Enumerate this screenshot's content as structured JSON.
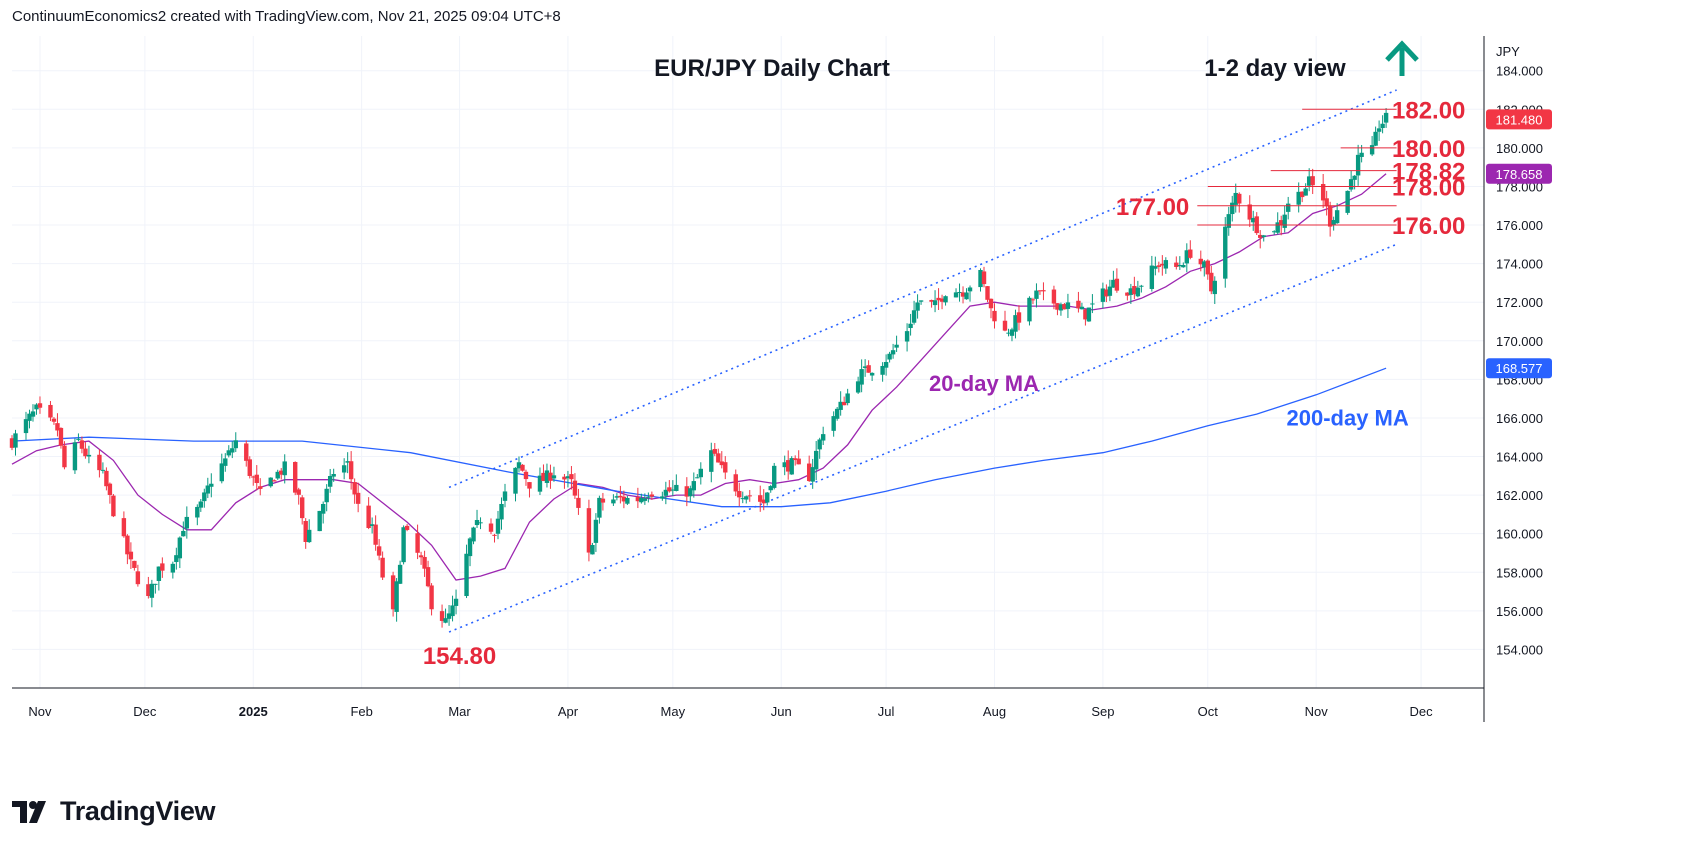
{
  "header": {
    "text": "ContinuumEconomics2 created with TradingView.com, Nov 21, 2025 09:04 UTC+8"
  },
  "brand": {
    "name": "TradingView",
    "icon": "tradingview-logo-icon"
  },
  "colors": {
    "up": "#089981",
    "down": "#f23645",
    "ma20": "#9c27b0",
    "ma200": "#2962ff",
    "level_text": "#e5293c",
    "channel": "#2962ff",
    "arrow": "#089981",
    "tag_last": "#f23645",
    "tag_ma20": "#9c27b0",
    "tag_ma200": "#2962ff"
  },
  "chart_data": {
    "type": "candlestick",
    "title": "EUR/JPY Daily Chart",
    "subtitle": "1-2 day view",
    "bias_icon": "arrow-up-icon",
    "currency": "JPY",
    "ylim": [
      152.0,
      185.8
    ],
    "y_ticks": [
      "154.000",
      "156.000",
      "158.000",
      "160.000",
      "162.000",
      "164.000",
      "166.000",
      "168.000",
      "170.000",
      "172.000",
      "174.000",
      "176.000",
      "178.000",
      "180.000",
      "182.000",
      "184.000"
    ],
    "y_tick_values": [
      154,
      156,
      158,
      160,
      162,
      164,
      166,
      168,
      170,
      172,
      174,
      176,
      178,
      180,
      182,
      184
    ],
    "x_range": [
      "2024-10-24",
      "2025-12-19"
    ],
    "x_ticks": [
      {
        "label": "Nov",
        "date": "2024-11-01",
        "bold": false
      },
      {
        "label": "Dec",
        "date": "2024-12-01",
        "bold": false
      },
      {
        "label": "2025",
        "date": "2025-01-01",
        "bold": true
      },
      {
        "label": "Feb",
        "date": "2025-02-01",
        "bold": false
      },
      {
        "label": "Mar",
        "date": "2025-03-01",
        "bold": false
      },
      {
        "label": "Apr",
        "date": "2025-04-01",
        "bold": false
      },
      {
        "label": "May",
        "date": "2025-05-01",
        "bold": false
      },
      {
        "label": "Jun",
        "date": "2025-06-01",
        "bold": false
      },
      {
        "label": "Jul",
        "date": "2025-07-01",
        "bold": false
      },
      {
        "label": "Aug",
        "date": "2025-08-01",
        "bold": false
      },
      {
        "label": "Sep",
        "date": "2025-09-01",
        "bold": false
      },
      {
        "label": "Oct",
        "date": "2025-10-01",
        "bold": false
      },
      {
        "label": "Nov",
        "date": "2025-11-01",
        "bold": false
      },
      {
        "label": "Dec",
        "date": "2025-12-01",
        "bold": false
      }
    ],
    "price_path": [
      [
        "2024-10-24",
        164.8
      ],
      [
        "2024-10-29",
        166.0
      ],
      [
        "2024-10-31",
        166.4
      ],
      [
        "2024-11-06",
        165.4
      ],
      [
        "2024-11-08",
        163.4
      ],
      [
        "2024-11-12",
        164.8
      ],
      [
        "2024-11-15",
        163.8
      ],
      [
        "2024-11-19",
        163.0
      ],
      [
        "2024-11-22",
        161.2
      ],
      [
        "2024-11-27",
        158.4
      ],
      [
        "2024-12-02",
        156.6
      ],
      [
        "2024-12-05",
        158.2
      ],
      [
        "2024-12-09",
        158.6
      ],
      [
        "2024-12-12",
        160.4
      ],
      [
        "2024-12-17",
        161.4
      ],
      [
        "2024-12-20",
        162.8
      ],
      [
        "2024-12-24",
        163.8
      ],
      [
        "2024-12-27",
        164.8
      ],
      [
        "2024-12-31",
        163.2
      ],
      [
        "2025-01-03",
        162.0
      ],
      [
        "2025-01-07",
        163.0
      ],
      [
        "2025-01-10",
        163.4
      ],
      [
        "2025-01-14",
        161.8
      ],
      [
        "2025-01-16",
        159.8
      ],
      [
        "2025-01-21",
        161.6
      ],
      [
        "2025-01-24",
        163.2
      ],
      [
        "2025-01-28",
        163.6
      ],
      [
        "2025-01-31",
        161.4
      ],
      [
        "2025-02-04",
        160.2
      ],
      [
        "2025-02-07",
        157.8
      ],
      [
        "2025-02-10",
        155.8
      ],
      [
        "2025-02-13",
        160.2
      ],
      [
        "2025-02-18",
        158.6
      ],
      [
        "2025-02-21",
        156.4
      ],
      [
        "2025-02-25",
        155.4
      ],
      [
        "2025-02-28",
        156.4
      ],
      [
        "2025-03-04",
        159.6
      ],
      [
        "2025-03-07",
        160.8
      ],
      [
        "2025-03-11",
        160.2
      ],
      [
        "2025-03-14",
        162.0
      ],
      [
        "2025-03-18",
        163.6
      ],
      [
        "2025-03-21",
        162.6
      ],
      [
        "2025-03-25",
        162.8
      ],
      [
        "2025-03-28",
        163.2
      ],
      [
        "2025-04-02",
        162.6
      ],
      [
        "2025-04-07",
        158.8
      ],
      [
        "2025-04-10",
        161.6
      ],
      [
        "2025-04-15",
        161.8
      ],
      [
        "2025-04-21",
        161.8
      ],
      [
        "2025-04-24",
        162.2
      ],
      [
        "2025-04-30",
        162.2
      ],
      [
        "2025-05-06",
        162.2
      ],
      [
        "2025-05-12",
        164.2
      ],
      [
        "2025-05-16",
        163.0
      ],
      [
        "2025-05-20",
        162.2
      ],
      [
        "2025-05-23",
        162.0
      ],
      [
        "2025-05-27",
        161.6
      ],
      [
        "2025-05-30",
        163.4
      ],
      [
        "2025-06-04",
        163.6
      ],
      [
        "2025-06-09",
        163.0
      ],
      [
        "2025-06-13",
        165.4
      ],
      [
        "2025-06-18",
        166.6
      ],
      [
        "2025-06-23",
        168.2
      ],
      [
        "2025-06-27",
        168.6
      ],
      [
        "2025-07-02",
        169.2
      ],
      [
        "2025-07-07",
        170.6
      ],
      [
        "2025-07-10",
        172.0
      ],
      [
        "2025-07-15",
        171.8
      ],
      [
        "2025-07-18",
        172.6
      ],
      [
        "2025-07-23",
        172.6
      ],
      [
        "2025-07-28",
        173.4
      ],
      [
        "2025-07-31",
        171.6
      ],
      [
        "2025-08-04",
        170.4
      ],
      [
        "2025-08-08",
        171.2
      ],
      [
        "2025-08-13",
        172.4
      ],
      [
        "2025-08-18",
        172.0
      ],
      [
        "2025-08-22",
        171.8
      ],
      [
        "2025-08-27",
        171.4
      ],
      [
        "2025-09-01",
        172.4
      ],
      [
        "2025-09-04",
        173.0
      ],
      [
        "2025-09-09",
        172.6
      ],
      [
        "2025-09-12",
        173.0
      ],
      [
        "2025-09-17",
        174.0
      ],
      [
        "2025-09-22",
        173.8
      ],
      [
        "2025-09-26",
        174.6
      ],
      [
        "2025-09-30",
        173.8
      ],
      [
        "2025-10-02",
        172.6
      ],
      [
        "2025-10-06",
        175.8
      ],
      [
        "2025-10-09",
        177.6
      ],
      [
        "2025-10-14",
        176.2
      ],
      [
        "2025-10-17",
        175.4
      ],
      [
        "2025-10-22",
        176.2
      ],
      [
        "2025-10-24",
        177.2
      ],
      [
        "2025-10-27",
        177.6
      ],
      [
        "2025-10-30",
        178.2
      ],
      [
        "2025-11-03",
        177.4
      ],
      [
        "2025-11-05",
        176.2
      ],
      [
        "2025-11-07",
        176.8
      ],
      [
        "2025-11-10",
        177.8
      ],
      [
        "2025-11-13",
        179.4
      ],
      [
        "2025-11-17",
        179.8
      ],
      [
        "2025-11-19",
        181.2
      ],
      [
        "2025-11-21",
        181.48
      ]
    ],
    "series": [
      {
        "name": "20-day MA",
        "points": [
          [
            "2024-10-24",
            163.6
          ],
          [
            "2024-10-31",
            164.3
          ],
          [
            "2024-11-07",
            164.6
          ],
          [
            "2024-11-15",
            164.8
          ],
          [
            "2024-11-22",
            163.8
          ],
          [
            "2024-11-29",
            162.0
          ],
          [
            "2024-12-06",
            161.0
          ],
          [
            "2024-12-13",
            160.2
          ],
          [
            "2024-12-20",
            160.2
          ],
          [
            "2024-12-27",
            161.6
          ],
          [
            "2025-01-03",
            162.4
          ],
          [
            "2025-01-10",
            162.8
          ],
          [
            "2025-01-17",
            162.8
          ],
          [
            "2025-01-24",
            162.8
          ],
          [
            "2025-01-31",
            162.6
          ],
          [
            "2025-02-07",
            161.6
          ],
          [
            "2025-02-14",
            160.6
          ],
          [
            "2025-02-21",
            159.4
          ],
          [
            "2025-02-28",
            157.6
          ],
          [
            "2025-03-07",
            157.8
          ],
          [
            "2025-03-14",
            158.2
          ],
          [
            "2025-03-21",
            160.6
          ],
          [
            "2025-03-28",
            161.8
          ],
          [
            "2025-04-04",
            162.6
          ],
          [
            "2025-04-11",
            162.4
          ],
          [
            "2025-04-18",
            162.0
          ],
          [
            "2025-04-25",
            161.8
          ],
          [
            "2025-05-02",
            162.0
          ],
          [
            "2025-05-09",
            162.0
          ],
          [
            "2025-05-16",
            162.6
          ],
          [
            "2025-05-23",
            162.8
          ],
          [
            "2025-05-30",
            162.6
          ],
          [
            "2025-06-06",
            162.8
          ],
          [
            "2025-06-13",
            163.4
          ],
          [
            "2025-06-20",
            164.6
          ],
          [
            "2025-06-27",
            166.4
          ],
          [
            "2025-07-04",
            167.6
          ],
          [
            "2025-07-11",
            169.0
          ],
          [
            "2025-07-18",
            170.4
          ],
          [
            "2025-07-25",
            171.8
          ],
          [
            "2025-08-01",
            172.0
          ],
          [
            "2025-08-08",
            171.8
          ],
          [
            "2025-08-15",
            171.8
          ],
          [
            "2025-08-22",
            171.8
          ],
          [
            "2025-08-29",
            171.6
          ],
          [
            "2025-09-05",
            171.8
          ],
          [
            "2025-09-12",
            172.2
          ],
          [
            "2025-09-19",
            172.8
          ],
          [
            "2025-09-26",
            173.6
          ],
          [
            "2025-10-03",
            174.0
          ],
          [
            "2025-10-10",
            174.6
          ],
          [
            "2025-10-17",
            175.4
          ],
          [
            "2025-10-24",
            175.6
          ],
          [
            "2025-10-31",
            176.6
          ],
          [
            "2025-11-07",
            177.0
          ],
          [
            "2025-11-14",
            177.6
          ],
          [
            "2025-11-21",
            178.658
          ]
        ]
      },
      {
        "name": "200-day MA",
        "points": [
          [
            "2024-10-24",
            164.8
          ],
          [
            "2024-11-15",
            165.0
          ],
          [
            "2024-12-15",
            164.8
          ],
          [
            "2025-01-15",
            164.8
          ],
          [
            "2025-02-15",
            164.2
          ],
          [
            "2025-03-15",
            163.2
          ],
          [
            "2025-04-15",
            162.2
          ],
          [
            "2025-05-15",
            161.4
          ],
          [
            "2025-06-01",
            161.4
          ],
          [
            "2025-06-15",
            161.6
          ],
          [
            "2025-07-01",
            162.2
          ],
          [
            "2025-07-15",
            162.8
          ],
          [
            "2025-08-01",
            163.4
          ],
          [
            "2025-08-15",
            163.8
          ],
          [
            "2025-09-01",
            164.2
          ],
          [
            "2025-09-15",
            164.8
          ],
          [
            "2025-10-01",
            165.6
          ],
          [
            "2025-10-15",
            166.2
          ],
          [
            "2025-11-01",
            167.2
          ],
          [
            "2025-11-21",
            168.577
          ]
        ]
      }
    ],
    "channel": {
      "upper": [
        [
          "2025-02-26",
          162.4
        ],
        [
          "2025-11-24",
          183.0
        ]
      ],
      "lower": [
        [
          "2025-02-26",
          154.9
        ],
        [
          "2025-11-24",
          175.0
        ]
      ]
    },
    "levels": [
      {
        "label": "182.00",
        "value": 182.0,
        "from": "2025-10-28",
        "to": "2025-11-24",
        "label_pos": "right"
      },
      {
        "label": "180.00",
        "value": 180.0,
        "from": "2025-11-08",
        "to": "2025-11-24",
        "label_pos": "right"
      },
      {
        "label": "178.82",
        "value": 178.82,
        "from": "2025-10-19",
        "to": "2025-11-24",
        "label_pos": "right"
      },
      {
        "label": "178.00",
        "value": 178.0,
        "from": "2025-10-01",
        "to": "2025-11-24",
        "label_pos": "right"
      },
      {
        "label": "177.00",
        "value": 177.0,
        "from": "2025-09-28",
        "to": "2025-11-24",
        "label_pos": "left"
      },
      {
        "label": "176.00",
        "value": 176.0,
        "from": "2025-09-28",
        "to": "2025-11-24",
        "label_pos": "right"
      }
    ],
    "annotations": [
      {
        "text": "154.80",
        "date": "2025-03-01",
        "value": 154.8,
        "kind": "low"
      },
      {
        "text": "20-day MA",
        "date": "2025-07-29",
        "value": 167.4,
        "kind": "ma20"
      },
      {
        "text": "200-day MA",
        "date": "2025-11-10",
        "value": 165.6,
        "kind": "ma200"
      }
    ],
    "price_tags": [
      {
        "text": "181.480",
        "value": 181.48,
        "kind": "last"
      },
      {
        "text": "178.658",
        "value": 178.658,
        "kind": "ma20"
      },
      {
        "text": "168.577",
        "value": 168.577,
        "kind": "ma200"
      }
    ]
  }
}
